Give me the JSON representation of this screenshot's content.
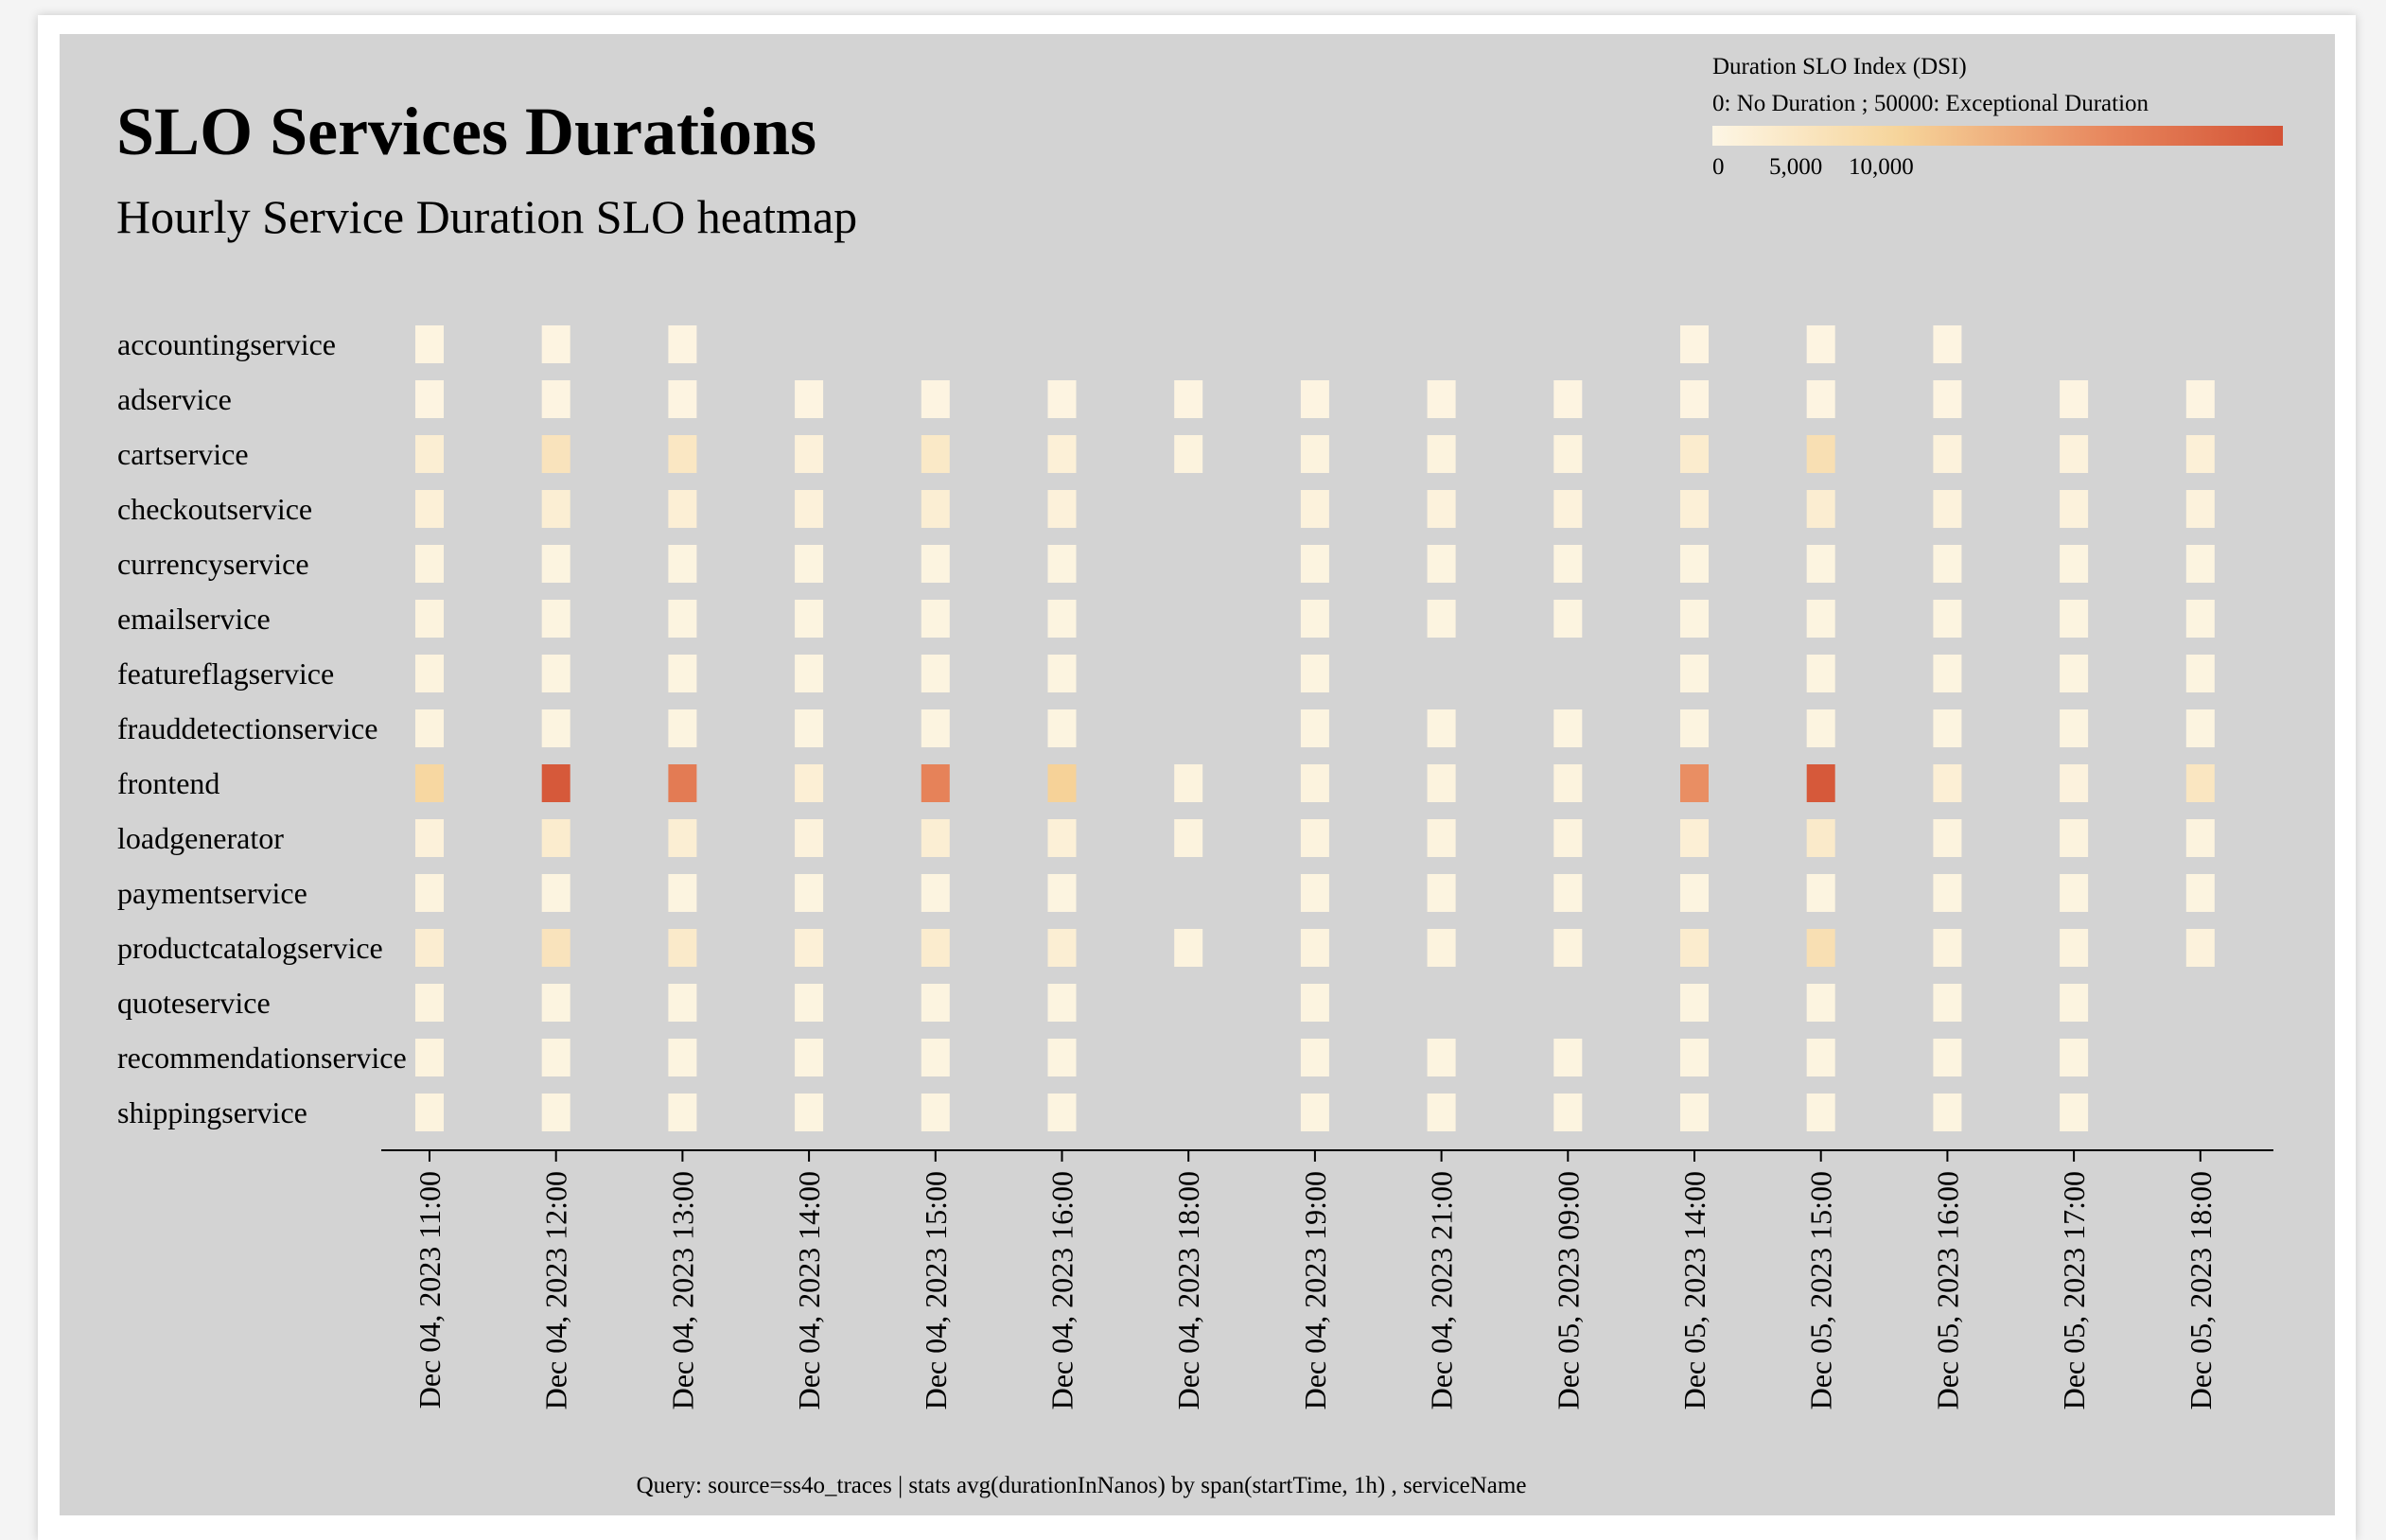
{
  "chart_data": {
    "type": "heatmap",
    "title": "SLO Services Durations",
    "subtitle": "Hourly Service Duration SLO heatmap",
    "legend": {
      "title": "Duration SLO Index (DSI)",
      "description": "0: No Duration ; 50000: Exceptional Duration",
      "tick_labels": [
        "0",
        "5,000",
        "10,000"
      ],
      "domain": [
        0,
        50000
      ],
      "colors": [
        "#fdf6e5",
        "#f6d49a",
        "#e7855c",
        "#d35235"
      ],
      "placement": "top-right"
    },
    "rows": [
      "accountingservice",
      "adservice",
      "cartservice",
      "checkoutservice",
      "currencyservice",
      "emailservice",
      "featureflagservice",
      "frauddetectionservice",
      "frontend",
      "loadgenerator",
      "paymentservice",
      "productcatalogservice",
      "quoteservice",
      "recommendationservice",
      "shippingservice"
    ],
    "columns": [
      "Dec 04, 2023 11:00",
      "Dec 04, 2023 12:00",
      "Dec 04, 2023 13:00",
      "Dec 04, 2023 14:00",
      "Dec 04, 2023 15:00",
      "Dec 04, 2023 16:00",
      "Dec 04, 2023 18:00",
      "Dec 04, 2023 19:00",
      "Dec 04, 2023 21:00",
      "Dec 05, 2023 09:00",
      "Dec 05, 2023 14:00",
      "Dec 05, 2023 15:00",
      "Dec 05, 2023 16:00",
      "Dec 05, 2023 17:00",
      "Dec 05, 2023 18:00"
    ],
    "values": [
      [
        1000,
        800,
        800,
        null,
        null,
        null,
        null,
        null,
        null,
        null,
        800,
        800,
        800,
        null,
        null
      ],
      [
        900,
        800,
        800,
        800,
        800,
        800,
        800,
        800,
        800,
        800,
        800,
        800,
        800,
        800,
        800
      ],
      [
        4000,
        9000,
        7500,
        2500,
        6500,
        3000,
        1500,
        1500,
        1500,
        1500,
        5000,
        11000,
        2000,
        2000,
        3000
      ],
      [
        3000,
        4000,
        3500,
        2500,
        4000,
        2500,
        null,
        2000,
        2000,
        2000,
        3000,
        4500,
        2000,
        2000,
        2000
      ],
      [
        1500,
        1200,
        1200,
        1200,
        1200,
        1200,
        null,
        1200,
        1200,
        1200,
        1200,
        1200,
        1200,
        1200,
        1200
      ],
      [
        1500,
        1200,
        1200,
        1200,
        1200,
        1200,
        null,
        1200,
        1200,
        1200,
        1200,
        1200,
        1200,
        1200,
        1200
      ],
      [
        1500,
        1200,
        1200,
        1200,
        1200,
        1200,
        null,
        1200,
        null,
        null,
        1200,
        1200,
        1200,
        1200,
        1200
      ],
      [
        1500,
        1200,
        1200,
        1200,
        1200,
        1200,
        null,
        1200,
        1200,
        1200,
        1200,
        1200,
        1200,
        1200,
        1200
      ],
      [
        15000,
        48000,
        38000,
        3500,
        36000,
        17000,
        1500,
        1500,
        1500,
        1500,
        33000,
        48000,
        3500,
        1800,
        8000
      ],
      [
        2500,
        5000,
        4000,
        2000,
        4000,
        3000,
        1500,
        1500,
        1500,
        1500,
        3500,
        6000,
        1500,
        1500,
        1500
      ],
      [
        1500,
        1200,
        1200,
        1200,
        1200,
        1200,
        null,
        1200,
        1200,
        1200,
        1200,
        1200,
        1200,
        1200,
        1200
      ],
      [
        4500,
        9000,
        6000,
        3000,
        5000,
        4000,
        1500,
        1500,
        1500,
        1500,
        5000,
        11000,
        1500,
        1500,
        2000
      ],
      [
        1500,
        1200,
        1200,
        1200,
        1200,
        1200,
        null,
        1200,
        null,
        null,
        1200,
        1200,
        1200,
        1200,
        null
      ],
      [
        1500,
        1200,
        1200,
        1200,
        1200,
        1200,
        null,
        1200,
        1200,
        1200,
        1200,
        1200,
        1200,
        1200,
        null
      ],
      [
        1500,
        1200,
        1200,
        1200,
        1200,
        1200,
        null,
        1200,
        1200,
        1200,
        1200,
        1200,
        1200,
        1200,
        null
      ]
    ]
  },
  "footer": {
    "query": "Query: source=ss4o_traces | stats avg(durationInNanos) by span(startTime, 1h) , serviceName"
  }
}
